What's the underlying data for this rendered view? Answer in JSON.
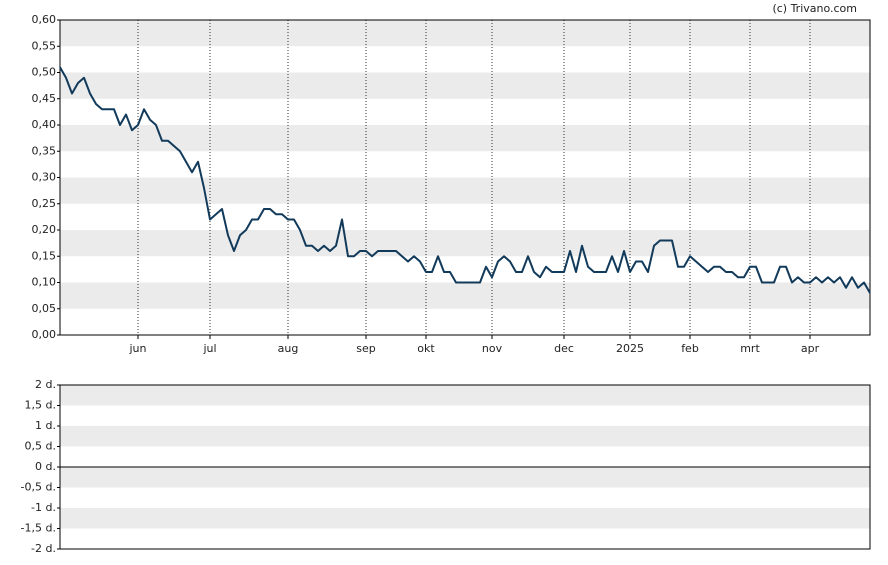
{
  "source": "(c) Trivano.com",
  "chart_data": [
    {
      "type": "line",
      "x": [
        0,
        1,
        2,
        3,
        4,
        5,
        6,
        7,
        8,
        9,
        10,
        11,
        12,
        13,
        14,
        15,
        16,
        17,
        18,
        19,
        20,
        21,
        22,
        23,
        24,
        25,
        26,
        27,
        28,
        29,
        30,
        31,
        32,
        33,
        34,
        35,
        36,
        37,
        38,
        39,
        40,
        41,
        42,
        43,
        44,
        45,
        46,
        47,
        48,
        49,
        50,
        51,
        52,
        53,
        54,
        55,
        56,
        57,
        58,
        59,
        60,
        61,
        62,
        63,
        64,
        65,
        66,
        67,
        68,
        69,
        70,
        71,
        72,
        73,
        74,
        75,
        76,
        77,
        78,
        79,
        80,
        81,
        82,
        83,
        84,
        85,
        86,
        87,
        88,
        89,
        90,
        91,
        92,
        93,
        94,
        95,
        96,
        97,
        98,
        99,
        100,
        101,
        102,
        103,
        104,
        105,
        106,
        107,
        108,
        109,
        110,
        111,
        112,
        113,
        114,
        115,
        116,
        117,
        118,
        119,
        120,
        121,
        122,
        123,
        124,
        125,
        126,
        127,
        128,
        129,
        130,
        131,
        132,
        133,
        134,
        135
      ],
      "series": [
        {
          "color": "#123a5a",
          "values": [
            0.51,
            0.49,
            0.46,
            0.48,
            0.49,
            0.46,
            0.44,
            0.43,
            0.43,
            0.43,
            0.4,
            0.42,
            0.39,
            0.4,
            0.43,
            0.41,
            0.4,
            0.37,
            0.37,
            0.36,
            0.35,
            0.33,
            0.31,
            0.33,
            0.28,
            0.22,
            0.23,
            0.24,
            0.19,
            0.16,
            0.19,
            0.2,
            0.22,
            0.22,
            0.24,
            0.24,
            0.23,
            0.23,
            0.22,
            0.22,
            0.2,
            0.17,
            0.17,
            0.16,
            0.17,
            0.16,
            0.17,
            0.22,
            0.15,
            0.15,
            0.16,
            0.16,
            0.15,
            0.16,
            0.16,
            0.16,
            0.16,
            0.15,
            0.14,
            0.15,
            0.14,
            0.12,
            0.12,
            0.15,
            0.12,
            0.12,
            0.1,
            0.1,
            0.1,
            0.1,
            0.1,
            0.13,
            0.11,
            0.14,
            0.15,
            0.14,
            0.12,
            0.12,
            0.15,
            0.12,
            0.11,
            0.13,
            0.12,
            0.12,
            0.12,
            0.16,
            0.12,
            0.17,
            0.13,
            0.12,
            0.12,
            0.12,
            0.15,
            0.12,
            0.16,
            0.12,
            0.14,
            0.14,
            0.12,
            0.17,
            0.18,
            0.18,
            0.18,
            0.13,
            0.13,
            0.15,
            0.14,
            0.13,
            0.12,
            0.13,
            0.13,
            0.12,
            0.12,
            0.11,
            0.11,
            0.13,
            0.13,
            0.1,
            0.1,
            0.1,
            0.13,
            0.13,
            0.1,
            0.11,
            0.1,
            0.1,
            0.11,
            0.1,
            0.11,
            0.1,
            0.11,
            0.09,
            0.11,
            0.09,
            0.1,
            0.08
          ]
        }
      ],
      "xlim": [
        0,
        135
      ],
      "xticks": [
        {
          "value": 13,
          "label": "jun"
        },
        {
          "value": 25,
          "label": "jul"
        },
        {
          "value": 38,
          "label": "aug"
        },
        {
          "value": 51,
          "label": "sep"
        },
        {
          "value": 61,
          "label": "okt"
        },
        {
          "value": 72,
          "label": "nov"
        },
        {
          "value": 84,
          "label": "dec"
        },
        {
          "value": 95,
          "label": "2025"
        },
        {
          "value": 105,
          "label": "feb"
        },
        {
          "value": 115,
          "label": "mrt"
        },
        {
          "value": 125,
          "label": "apr"
        }
      ],
      "ylim": [
        0,
        0.6
      ],
      "yticks": [
        {
          "value": 0,
          "label": "0,00"
        },
        {
          "value": 0.05,
          "label": "0,05"
        },
        {
          "value": 0.1,
          "label": "0,10"
        },
        {
          "value": 0.15,
          "label": "0,15"
        },
        {
          "value": 0.2,
          "label": "0,20"
        },
        {
          "value": 0.25,
          "label": "0,25"
        },
        {
          "value": 0.3,
          "label": "0,30"
        },
        {
          "value": 0.35,
          "label": "0,35"
        },
        {
          "value": 0.4,
          "label": "0,40"
        },
        {
          "value": 0.45,
          "label": "0,45"
        },
        {
          "value": 0.5,
          "label": "0,50"
        },
        {
          "value": 0.55,
          "label": "0,55"
        },
        {
          "value": 0.6,
          "label": "0,60"
        }
      ],
      "grid": true
    },
    {
      "type": "line",
      "ylim": [
        -2,
        2
      ],
      "yticks": [
        {
          "value": -2,
          "label": "-2 d."
        },
        {
          "value": -1.5,
          "label": "-1,5 d."
        },
        {
          "value": -1,
          "label": "-1 d."
        },
        {
          "value": -0.5,
          "label": "-0,5 d."
        },
        {
          "value": 0,
          "label": "0 d."
        },
        {
          "value": 0.5,
          "label": "0,5 d."
        },
        {
          "value": 1,
          "label": "1 d."
        },
        {
          "value": 1.5,
          "label": "1,5 d."
        },
        {
          "value": 2,
          "label": "2 d."
        }
      ],
      "grid": true
    }
  ]
}
